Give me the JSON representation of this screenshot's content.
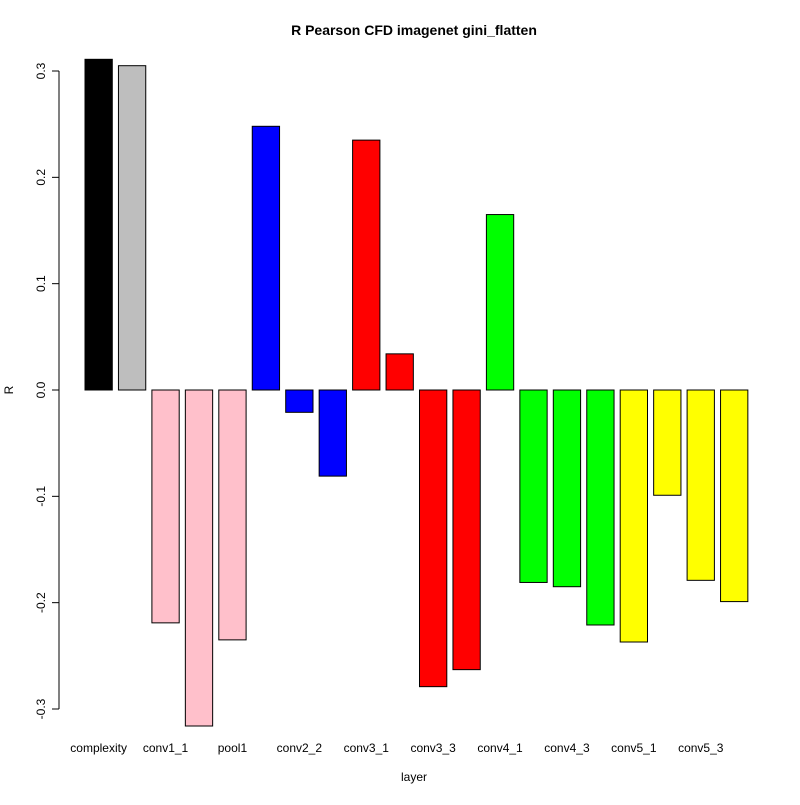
{
  "chart_data": {
    "type": "bar",
    "title": "R Pearson   CFD   imagenet   gini_flatten",
    "xlabel": "layer",
    "ylabel": "R",
    "ylim": [
      -0.3,
      0.3
    ],
    "yticks": [
      -0.3,
      -0.2,
      -0.1,
      0.0,
      0.1,
      0.2,
      0.3
    ],
    "ytick_labels": [
      "-0.3",
      "-0.2",
      "-0.1",
      "0.0",
      "0.1",
      "0.2",
      "0.3"
    ],
    "grid": false,
    "categories": [
      "complexity",
      "",
      "conv1_1",
      "",
      "pool1",
      "",
      "conv2_2",
      "",
      "conv3_1",
      "",
      "conv3_3",
      "",
      "conv4_1",
      "",
      "conv4_3",
      "",
      "conv5_1",
      "",
      "conv5_3",
      ""
    ],
    "values": [
      0.311,
      0.305,
      -0.219,
      -0.316,
      -0.235,
      0.248,
      -0.021,
      -0.081,
      0.235,
      0.034,
      -0.279,
      -0.263,
      0.165,
      -0.181,
      -0.185,
      -0.221,
      -0.237,
      -0.099,
      -0.179,
      -0.199
    ],
    "colors": [
      "#000000",
      "#bebebe",
      "#ffc0cb",
      "#ffc0cb",
      "#ffc0cb",
      "#0000ff",
      "#0000ff",
      "#0000ff",
      "#ff0000",
      "#ff0000",
      "#ff0000",
      "#ff0000",
      "#00ff00",
      "#00ff00",
      "#00ff00",
      "#00ff00",
      "#ffff00",
      "#ffff00",
      "#ffff00",
      "#ffff00"
    ]
  }
}
